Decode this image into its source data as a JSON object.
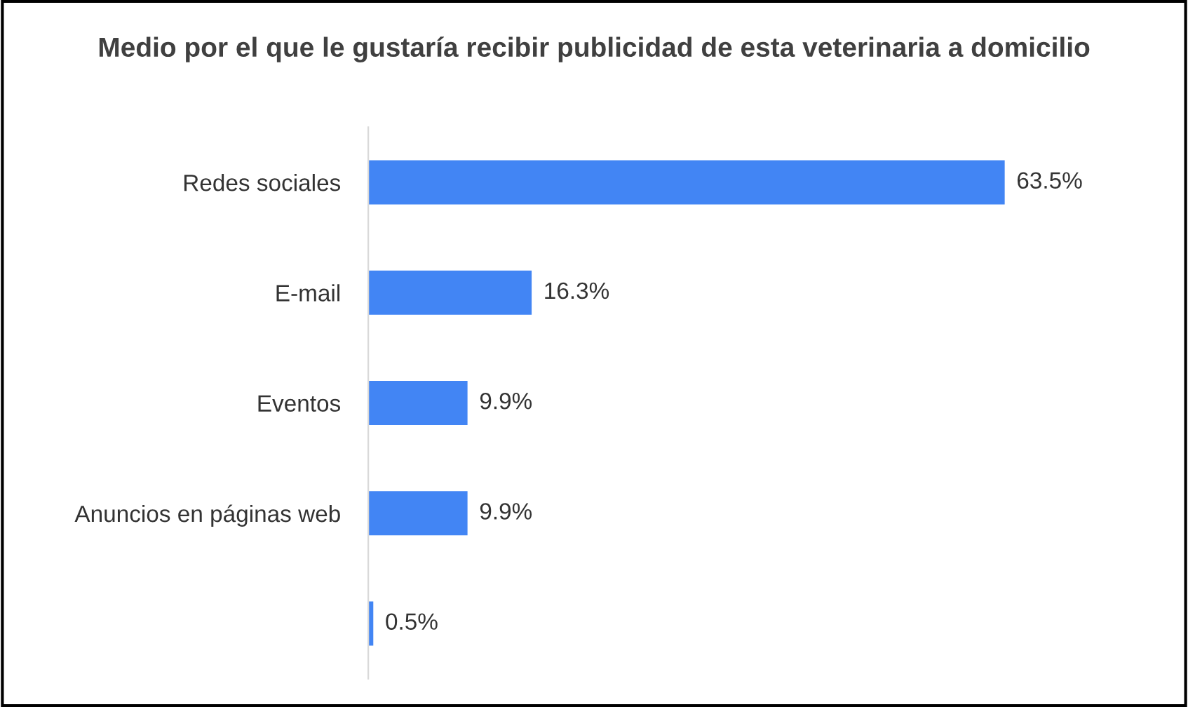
{
  "chart_data": {
    "type": "bar",
    "orientation": "horizontal",
    "title": "Medio por el que le gustaría recibir publicidad de esta veterinaria a domicilio",
    "categories": [
      "Redes sociales",
      "E-mail",
      "Eventos",
      "Anuncios en páginas web",
      null
    ],
    "values": [
      63.5,
      16.3,
      9.9,
      9.9,
      0.5
    ],
    "value_labels": [
      "63.5%",
      "16.3%",
      "9.9%",
      "9.9%",
      "0.5%"
    ],
    "color": "#4285f4",
    "grid": false,
    "legend": false
  }
}
